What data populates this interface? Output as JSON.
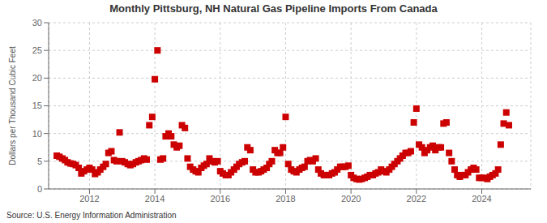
{
  "chart_data": {
    "type": "scatter",
    "title": "Monthly Pittsburg, NH Natural Gas Pipeline Imports From Canada",
    "ylabel": "Dollars per Thousand Cubic Feet",
    "annotation": "Source: U.S. Energy Information Administration",
    "color": "#cc0000",
    "marker": "square",
    "grid": true,
    "xlim": [
      2010.75,
      2025.5
    ],
    "xticks": [
      2012,
      2014,
      2016,
      2018,
      2020,
      2022,
      2024
    ],
    "ylim": [
      0,
      30
    ],
    "yticks": [
      0,
      5,
      10,
      15,
      20,
      25,
      30
    ],
    "x": [
      2011.0,
      2011.08,
      2011.17,
      2011.25,
      2011.33,
      2011.42,
      2011.5,
      2011.58,
      2011.67,
      2011.75,
      2011.83,
      2011.92,
      2012.0,
      2012.08,
      2012.17,
      2012.25,
      2012.33,
      2012.42,
      2012.5,
      2012.58,
      2012.67,
      2012.75,
      2012.83,
      2012.92,
      2013.0,
      2013.08,
      2013.17,
      2013.25,
      2013.33,
      2013.42,
      2013.5,
      2013.58,
      2013.67,
      2013.75,
      2013.83,
      2013.92,
      2014.0,
      2014.08,
      2014.17,
      2014.25,
      2014.33,
      2014.42,
      2014.5,
      2014.58,
      2014.67,
      2014.75,
      2014.83,
      2014.92,
      2015.0,
      2015.08,
      2015.17,
      2015.25,
      2015.33,
      2015.42,
      2015.5,
      2015.58,
      2015.67,
      2015.75,
      2015.83,
      2015.92,
      2016.0,
      2016.08,
      2016.17,
      2016.25,
      2016.33,
      2016.42,
      2016.5,
      2016.58,
      2016.67,
      2016.75,
      2016.83,
      2016.92,
      2017.0,
      2017.08,
      2017.17,
      2017.25,
      2017.33,
      2017.42,
      2017.5,
      2017.58,
      2017.67,
      2017.75,
      2017.83,
      2017.92,
      2018.0,
      2018.08,
      2018.17,
      2018.25,
      2018.33,
      2018.42,
      2018.5,
      2018.58,
      2018.67,
      2018.75,
      2018.83,
      2018.92,
      2019.0,
      2019.08,
      2019.17,
      2019.25,
      2019.33,
      2019.42,
      2019.5,
      2019.58,
      2019.67,
      2019.75,
      2019.83,
      2019.92,
      2020.0,
      2020.08,
      2020.17,
      2020.25,
      2020.33,
      2020.42,
      2020.5,
      2020.58,
      2020.67,
      2020.75,
      2020.83,
      2020.92,
      2021.0,
      2021.08,
      2021.17,
      2021.25,
      2021.33,
      2021.42,
      2021.5,
      2021.58,
      2021.67,
      2021.75,
      2021.83,
      2021.92,
      2022.0,
      2022.08,
      2022.17,
      2022.25,
      2022.33,
      2022.42,
      2022.5,
      2022.58,
      2022.67,
      2022.75,
      2022.83,
      2022.92,
      2023.0,
      2023.08,
      2023.17,
      2023.25,
      2023.33,
      2023.42,
      2023.5,
      2023.58,
      2023.67,
      2023.75,
      2023.83,
      2023.92,
      2024.0,
      2024.08,
      2024.17,
      2024.25,
      2024.33,
      2024.42,
      2024.5,
      2024.58,
      2024.67,
      2024.75,
      2024.83
    ],
    "values": [
      6.0,
      5.8,
      5.5,
      5.2,
      4.8,
      4.6,
      4.5,
      4.3,
      3.8,
      2.8,
      3.2,
      3.5,
      3.8,
      3.5,
      2.7,
      3.0,
      3.5,
      4.0,
      4.5,
      6.5,
      6.8,
      5.2,
      5.0,
      10.2,
      5.0,
      4.8,
      4.5,
      4.3,
      4.5,
      4.8,
      5.0,
      5.2,
      5.5,
      5.3,
      11.5,
      13.0,
      19.8,
      25.0,
      5.3,
      5.5,
      9.5,
      10.0,
      9.5,
      8.0,
      7.5,
      7.8,
      11.5,
      11.0,
      5.5,
      4.0,
      3.5,
      3.2,
      3.0,
      3.8,
      4.2,
      4.5,
      5.5,
      5.0,
      4.8,
      5.0,
      3.2,
      2.8,
      2.5,
      2.5,
      3.0,
      3.5,
      4.0,
      4.5,
      4.8,
      5.0,
      7.5,
      7.0,
      3.5,
      3.0,
      3.0,
      3.2,
      3.5,
      3.8,
      4.5,
      5.0,
      7.0,
      6.5,
      6.5,
      7.5,
      13.0,
      4.5,
      3.5,
      3.2,
      3.0,
      3.5,
      3.8,
      4.0,
      5.0,
      5.2,
      5.0,
      5.5,
      3.5,
      2.8,
      2.5,
      2.5,
      2.5,
      2.8,
      3.0,
      3.5,
      4.0,
      4.0,
      4.0,
      4.2,
      2.5,
      2.0,
      1.8,
      1.7,
      1.8,
      2.0,
      2.2,
      2.5,
      2.5,
      2.8,
      3.0,
      3.5,
      3.2,
      3.0,
      3.5,
      4.0,
      4.5,
      5.0,
      5.5,
      6.0,
      6.5,
      6.5,
      6.8,
      12.0,
      14.5,
      8.0,
      7.5,
      6.5,
      7.0,
      7.5,
      7.8,
      7.0,
      7.5,
      7.5,
      11.8,
      12.0,
      6.5,
      5.0,
      3.5,
      2.5,
      2.2,
      2.5,
      2.5,
      3.0,
      3.5,
      3.8,
      3.5,
      2.0,
      2.0,
      2.0,
      1.8,
      2.2,
      2.5,
      2.8,
      3.5,
      8.0,
      11.8,
      13.8,
      11.5
    ]
  }
}
